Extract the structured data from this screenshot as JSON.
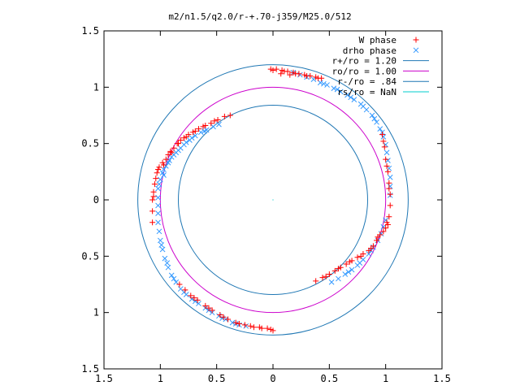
{
  "chart_data": {
    "type": "scatter",
    "title": "m2/n1.5/q2.0/r-+.70-j359/M25.0/512",
    "xlabel": "",
    "ylabel": "",
    "xlim": [
      -1.5,
      1.5
    ],
    "ylim": [
      -1.5,
      1.5
    ],
    "x_ticks": [
      -1.5,
      -1,
      -0.5,
      0,
      0.5,
      1,
      1.5
    ],
    "y_ticks": [
      -1.5,
      -1,
      -0.5,
      0,
      0.5,
      1,
      1.5
    ],
    "x_tick_labels": [
      "1.5",
      "1",
      "0.5",
      "0",
      "0.5",
      "1",
      "1.5"
    ],
    "y_tick_labels": [
      "1.5",
      "1",
      "0.5",
      "0",
      "0.5",
      "1",
      "1.5"
    ],
    "grid": false,
    "legend_position": "top-right",
    "series": [
      {
        "name": "W phase",
        "marker": "plus",
        "color": "#ff0000",
        "points": [
          [
            -1.07,
            0.0
          ],
          [
            -1.06,
            0.07
          ],
          [
            -1.05,
            0.14
          ],
          [
            -1.04,
            0.19
          ],
          [
            -1.03,
            0.24
          ],
          [
            -1.01,
            0.29
          ],
          [
            -0.98,
            0.33
          ],
          [
            -0.95,
            0.36
          ],
          [
            -0.93,
            0.4
          ],
          [
            -0.91,
            0.43
          ],
          [
            -0.88,
            0.46
          ],
          [
            -0.85,
            0.5
          ],
          [
            -0.82,
            0.53
          ],
          [
            -0.79,
            0.55
          ],
          [
            -0.75,
            0.58
          ],
          [
            -0.71,
            0.6
          ],
          [
            -0.66,
            0.63
          ],
          [
            -0.6,
            0.66
          ],
          [
            -0.55,
            0.68
          ],
          [
            -0.49,
            0.71
          ],
          [
            -0.43,
            0.74
          ],
          [
            -0.38,
            0.75
          ],
          [
            -1.06,
            0.03
          ],
          [
            -1.02,
            0.27
          ],
          [
            -0.97,
            0.31
          ],
          [
            -0.9,
            0.42
          ],
          [
            -0.84,
            0.5
          ],
          [
            -0.77,
            0.56
          ],
          [
            -0.69,
            0.61
          ],
          [
            -0.62,
            0.65
          ],
          [
            -0.52,
            0.7
          ],
          [
            -1.07,
            -0.1
          ],
          [
            -1.07,
            -0.2
          ],
          [
            -0.02,
            1.16
          ],
          [
            0.03,
            1.16
          ],
          [
            0.08,
            1.15
          ],
          [
            0.13,
            1.14
          ],
          [
            0.18,
            1.13
          ],
          [
            0.23,
            1.12
          ],
          [
            0.28,
            1.11
          ],
          [
            0.33,
            1.1
          ],
          [
            0.38,
            1.09
          ],
          [
            0.43,
            1.08
          ],
          [
            0.0,
            1.15
          ],
          [
            0.1,
            1.14
          ],
          [
            0.2,
            1.12
          ],
          [
            0.3,
            1.1
          ],
          [
            0.4,
            1.08
          ],
          [
            0.07,
            1.12
          ],
          [
            0.15,
            1.11
          ],
          [
            0.97,
            0.58
          ],
          [
            0.99,
            0.47
          ],
          [
            1.0,
            0.36
          ],
          [
            1.02,
            0.25
          ],
          [
            1.03,
            0.15
          ],
          [
            1.04,
            0.05
          ],
          [
            1.04,
            -0.05
          ],
          [
            1.03,
            -0.15
          ],
          [
            1.02,
            -0.22
          ],
          [
            0.98,
            0.52
          ],
          [
            1.01,
            0.3
          ],
          [
            1.03,
            0.1
          ],
          [
            1.01,
            -0.2
          ],
          [
            1.0,
            -0.25
          ],
          [
            0.98,
            -0.28
          ],
          [
            0.95,
            -0.31
          ],
          [
            0.92,
            -0.36
          ],
          [
            0.89,
            -0.41
          ],
          [
            0.85,
            -0.45
          ],
          [
            0.8,
            -0.48
          ],
          [
            0.75,
            -0.51
          ],
          [
            0.7,
            -0.54
          ],
          [
            0.65,
            -0.57
          ],
          [
            0.6,
            -0.6
          ],
          [
            0.55,
            -0.63
          ],
          [
            0.5,
            -0.66
          ],
          [
            0.44,
            -0.69
          ],
          [
            0.38,
            -0.72
          ],
          [
            0.93,
            -0.33
          ],
          [
            0.87,
            -0.43
          ],
          [
            0.78,
            -0.5
          ],
          [
            0.68,
            -0.55
          ],
          [
            0.58,
            -0.61
          ],
          [
            0.47,
            -0.68
          ],
          [
            -0.83,
            -0.75
          ],
          [
            -0.78,
            -0.8
          ],
          [
            -0.73,
            -0.85
          ],
          [
            -0.67,
            -0.89
          ],
          [
            -0.6,
            -0.94
          ],
          [
            -0.54,
            -0.98
          ],
          [
            -0.47,
            -1.02
          ],
          [
            -0.4,
            -1.06
          ],
          [
            -0.33,
            -1.09
          ],
          [
            -0.25,
            -1.11
          ],
          [
            -0.17,
            -1.13
          ],
          [
            -0.1,
            -1.14
          ],
          [
            -0.02,
            -1.15
          ],
          [
            0.0,
            -1.16
          ],
          [
            -0.2,
            -1.12
          ],
          [
            -0.05,
            -1.14
          ],
          [
            -0.12,
            -1.13
          ],
          [
            -0.3,
            -1.1
          ],
          [
            -0.44,
            -1.04
          ],
          [
            -0.57,
            -0.96
          ],
          [
            -0.7,
            -0.87
          ]
        ]
      },
      {
        "name": "drho phase",
        "marker": "cross",
        "color": "#3399ff",
        "points": [
          [
            -1.02,
            0.02
          ],
          [
            -1.02,
            0.1
          ],
          [
            -1.0,
            0.18
          ],
          [
            -0.98,
            0.24
          ],
          [
            -0.95,
            0.3
          ],
          [
            -0.92,
            0.35
          ],
          [
            -0.88,
            0.4
          ],
          [
            -0.84,
            0.44
          ],
          [
            -0.79,
            0.49
          ],
          [
            -0.74,
            0.53
          ],
          [
            -0.69,
            0.57
          ],
          [
            -0.64,
            0.6
          ],
          [
            -0.59,
            0.62
          ],
          [
            -0.53,
            0.65
          ],
          [
            -0.48,
            0.67
          ],
          [
            -1.01,
            0.14
          ],
          [
            -0.97,
            0.27
          ],
          [
            -0.9,
            0.38
          ],
          [
            -0.82,
            0.46
          ],
          [
            -0.72,
            0.55
          ],
          [
            -0.61,
            0.61
          ],
          [
            -0.97,
            0.22
          ],
          [
            -0.93,
            0.33
          ],
          [
            -0.86,
            0.42
          ],
          [
            -0.77,
            0.51
          ],
          [
            0.18,
            1.13
          ],
          [
            0.24,
            1.11
          ],
          [
            0.3,
            1.09
          ],
          [
            0.36,
            1.07
          ],
          [
            0.42,
            1.04
          ],
          [
            0.48,
            1.02
          ],
          [
            0.54,
            0.99
          ],
          [
            0.6,
            0.96
          ],
          [
            0.66,
            0.93
          ],
          [
            0.72,
            0.89
          ],
          [
            0.78,
            0.85
          ],
          [
            0.83,
            0.8
          ],
          [
            0.88,
            0.75
          ],
          [
            0.92,
            0.69
          ],
          [
            0.95,
            0.63
          ],
          [
            0.98,
            0.56
          ],
          [
            1.0,
            0.49
          ],
          [
            1.01,
            0.42
          ],
          [
            1.02,
            0.35
          ],
          [
            1.03,
            0.28
          ],
          [
            1.04,
            0.2
          ],
          [
            1.04,
            0.12
          ],
          [
            1.04,
            0.04
          ],
          [
            0.45,
            1.03
          ],
          [
            0.57,
            0.98
          ],
          [
            0.69,
            0.91
          ],
          [
            0.8,
            0.83
          ],
          [
            0.9,
            0.72
          ],
          [
            0.97,
            0.6
          ],
          [
            1.0,
            -0.18
          ],
          [
            0.98,
            -0.24
          ],
          [
            0.96,
            -0.3
          ],
          [
            0.93,
            -0.36
          ],
          [
            0.89,
            -0.42
          ],
          [
            0.85,
            -0.48
          ],
          [
            0.8,
            -0.53
          ],
          [
            0.75,
            -0.58
          ],
          [
            0.7,
            -0.62
          ],
          [
            0.64,
            -0.66
          ],
          [
            0.58,
            -0.7
          ],
          [
            0.52,
            -0.73
          ],
          [
            0.87,
            -0.45
          ],
          [
            0.77,
            -0.56
          ],
          [
            0.67,
            -0.64
          ],
          [
            -1.02,
            -0.05
          ],
          [
            -1.02,
            -0.12
          ],
          [
            -1.02,
            -0.2
          ],
          [
            -1.01,
            -0.28
          ],
          [
            -1.0,
            -0.36
          ],
          [
            -0.98,
            -0.44
          ],
          [
            -0.96,
            -0.52
          ],
          [
            -0.93,
            -0.6
          ],
          [
            -0.9,
            -0.67
          ],
          [
            -0.86,
            -0.73
          ],
          [
            -0.82,
            -0.79
          ],
          [
            -0.77,
            -0.84
          ],
          [
            -0.72,
            -0.88
          ],
          [
            -0.66,
            -0.92
          ],
          [
            -0.6,
            -0.96
          ],
          [
            -0.54,
            -1.0
          ],
          [
            -0.48,
            -1.03
          ],
          [
            -0.42,
            -1.06
          ],
          [
            -0.36,
            -1.09
          ],
          [
            -0.3,
            -1.11
          ],
          [
            -0.24,
            -1.12
          ],
          [
            -0.99,
            -0.4
          ],
          [
            -0.94,
            -0.56
          ],
          [
            -0.88,
            -0.7
          ],
          [
            -0.79,
            -0.82
          ],
          [
            -0.69,
            -0.9
          ],
          [
            -0.57,
            -0.98
          ],
          [
            -0.45,
            -1.05
          ],
          [
            -0.33,
            -1.1
          ]
        ]
      },
      {
        "name": "r+/ro = 1.20",
        "shape": "circle",
        "radius": 1.2,
        "color": "#1f77b4"
      },
      {
        "name": "ro/ro = 1.00",
        "shape": "circle",
        "radius": 1.0,
        "color": "#cc00cc"
      },
      {
        "name": "r-/ro = .84",
        "shape": "circle",
        "radius": 0.84,
        "color": "#1f77b4"
      },
      {
        "name": "rs/ro = NaN",
        "shape": "circle",
        "radius": null,
        "color": "#00cccc"
      }
    ]
  }
}
